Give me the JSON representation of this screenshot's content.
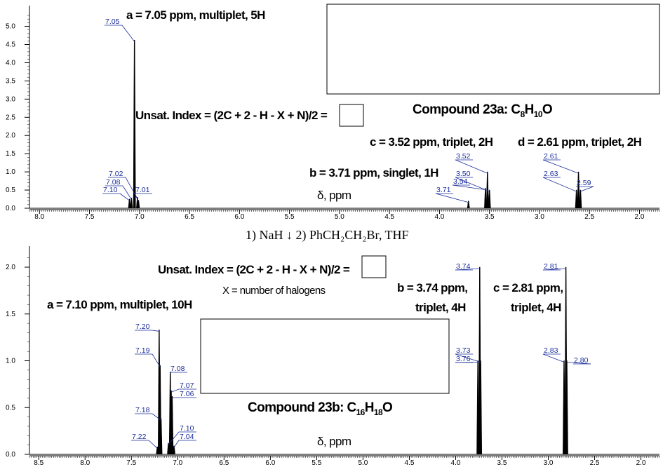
{
  "colors": {
    "label": "#1a2c9a",
    "axis": "#000000",
    "peak": "#000000"
  },
  "reaction_text": "1) NaH ↓ 2) PhCH₂CH₂Br, THF",
  "chart_data": [
    {
      "type": "line",
      "name": "Compound 23a",
      "xlim": [
        8.1,
        1.8
      ],
      "ylim": [
        0,
        5.3
      ],
      "xticks": [
        "8.0",
        "7.5",
        "7.0",
        "6.5",
        "6.0",
        "5.5",
        "5.0",
        "4.5",
        "4.0",
        "3.5",
        "3.0",
        "2.5",
        "2.0"
      ],
      "yticks": [
        "0.0",
        "0.5",
        "1.0",
        "1.5",
        "2.0",
        "2.5",
        "3.0",
        "3.5",
        "4.0",
        "4.5",
        "5.0"
      ],
      "xlabel": "δ, ppm",
      "peaks": [
        {
          "x": 7.05,
          "y": 4.62
        },
        {
          "x": 7.02,
          "y": 0.3
        },
        {
          "x": 7.08,
          "y": 0.28
        },
        {
          "x": 7.1,
          "y": 0.25
        },
        {
          "x": 7.01,
          "y": 0.22
        },
        {
          "x": 3.71,
          "y": 0.2
        },
        {
          "x": 3.54,
          "y": 0.55
        },
        {
          "x": 3.52,
          "y": 1.0
        },
        {
          "x": 3.5,
          "y": 0.5
        },
        {
          "x": 2.63,
          "y": 0.5
        },
        {
          "x": 2.61,
          "y": 1.0
        },
        {
          "x": 2.59,
          "y": 0.5
        }
      ],
      "peak_labels": [
        "7.05",
        "7.02",
        "7.08",
        "7.10",
        "7.01",
        "3.52",
        "3.50",
        "3.54",
        "3.71",
        "2.61",
        "2.63",
        "2.59"
      ],
      "annotations": {
        "a": "a = 7.05 ppm, multiplet, 5H",
        "b": "b = 3.71 ppm, singlet, 1H",
        "c": "c = 3.52 ppm, triplet, 2H",
        "d": "d = 2.61 ppm, triplet, 2H",
        "unsat": "Unsat. Index = (2C + 2 - H - X + N)/2 =",
        "compound_prefix": "Compound 23a: C",
        "compound_c": "8",
        "compound_h": "H",
        "compound_hn": "10",
        "compound_o": "O"
      }
    },
    {
      "type": "line",
      "name": "Compound 23b",
      "xlim": [
        8.6,
        1.8
      ],
      "ylim": [
        0,
        2.12
      ],
      "xticks": [
        "8.5",
        "8.0",
        "7.5",
        "7.0",
        "6.5",
        "6.0",
        "5.5",
        "5.0",
        "4.5",
        "4.0",
        "3.5",
        "3.0",
        "2.5",
        "2.0"
      ],
      "yticks": [
        "0.0",
        "0.5",
        "1.0",
        "1.5",
        "2.0"
      ],
      "xlabel": "δ, ppm",
      "peaks": [
        {
          "x": 7.2,
          "y": 1.33
        },
        {
          "x": 7.19,
          "y": 0.95
        },
        {
          "x": 7.18,
          "y": 0.38
        },
        {
          "x": 7.22,
          "y": 0.08
        },
        {
          "x": 7.08,
          "y": 0.88
        },
        {
          "x": 7.07,
          "y": 0.68
        },
        {
          "x": 7.06,
          "y": 0.62
        },
        {
          "x": 7.1,
          "y": 0.12
        },
        {
          "x": 7.04,
          "y": 0.09
        },
        {
          "x": 3.74,
          "y": 2.0
        },
        {
          "x": 3.73,
          "y": 1.0
        },
        {
          "x": 3.76,
          "y": 1.0
        },
        {
          "x": 2.81,
          "y": 2.0
        },
        {
          "x": 2.83,
          "y": 1.0
        },
        {
          "x": 2.8,
          "y": 1.0
        }
      ],
      "peak_labels": [
        "7.20",
        "7.19",
        "7.18",
        "7.22",
        "7.08",
        "7.07",
        "7.06",
        "7.10",
        "7.04",
        "3.74",
        "3.73",
        "3.76",
        "2.81",
        "2.83",
        "2.80"
      ],
      "annotations": {
        "a": "a = 7.10 ppm, multiplet, 10H",
        "b1": "b = 3.74 ppm,",
        "b2": "triplet, 4H",
        "c1": "c = 2.81 ppm,",
        "c2": "triplet, 4H",
        "unsat": "Unsat. Index = (2C + 2 - H - X + N)/2 =",
        "halogen": "X = number of halogens",
        "compound_prefix": "Compound 23b: C",
        "compound_c": "16",
        "compound_h": "H",
        "compound_hn": "18",
        "compound_o": "O"
      }
    }
  ]
}
